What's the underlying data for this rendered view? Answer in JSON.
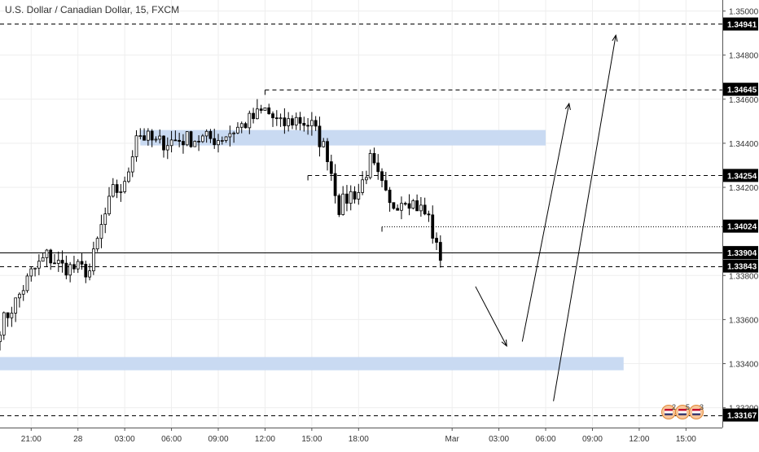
{
  "window": {
    "title": "U.S. Dollar / Canadian Dollar, 15, FXCM"
  },
  "colors": {
    "up": "#000000",
    "down": "#000000",
    "up_fill": "#ffffff",
    "zone": "#c9daf2",
    "grid": "#eeeeee",
    "badge": "#f7c59a"
  },
  "chart_data": {
    "type": "candlestick",
    "title": "U.S. Dollar / Canadian Dollar, 15, FXCM",
    "xlabel": "",
    "ylabel": "",
    "ylim": [
      1.3311,
      1.3505
    ],
    "y_ticks": [
      "1.35000",
      "1.34800",
      "1.34600",
      "1.34400",
      "1.34200",
      "1.33800",
      "1.33600",
      "1.33400",
      "1.33200"
    ],
    "y_tick_values": [
      1.35,
      1.348,
      1.346,
      1.344,
      1.342,
      1.338,
      1.336,
      1.334,
      1.332
    ],
    "x_tick_labels": [
      "21:00",
      "28",
      "03:00",
      "06:00",
      "09:00",
      "12:00",
      "15:00",
      "18:00",
      "Mar",
      "03:00",
      "06:00",
      "09:00",
      "12:00",
      "15:00"
    ],
    "x_tick_times": [
      "2019-02-27 21:00",
      "2019-02-28 00:00",
      "2019-02-28 03:00",
      "2019-02-28 06:00",
      "2019-02-28 09:00",
      "2019-02-28 12:00",
      "2019-02-28 15:00",
      "2019-02-28 18:00",
      "2019-03-01 00:00",
      "2019-03-01 03:00",
      "2019-03-01 06:00",
      "2019-03-01 09:00",
      "2019-03-01 12:00",
      "2019-03-01 15:00"
    ],
    "x_range": [
      "2019-02-27 19:00",
      "2019-03-01 17:20"
    ],
    "close_path": [
      [
        "2019-02-27 19:00",
        1.3357
      ],
      [
        "2019-02-27 20:00",
        1.3368
      ],
      [
        "2019-02-27 21:00",
        1.3381
      ],
      [
        "2019-02-27 22:00",
        1.3389
      ],
      [
        "2019-02-27 23:00",
        1.3384
      ],
      [
        "2019-02-28 00:00",
        1.3383
      ],
      [
        "2019-02-28 00:45",
        1.3382
      ],
      [
        "2019-02-28 01:30",
        1.3402
      ],
      [
        "2019-02-28 02:15",
        1.3418
      ],
      [
        "2019-02-28 03:00",
        1.342
      ],
      [
        "2019-02-28 03:45",
        1.3445
      ],
      [
        "2019-02-28 05:00",
        1.344
      ],
      [
        "2019-02-28 07:00",
        1.3442
      ],
      [
        "2019-02-28 09:00",
        1.3442
      ],
      [
        "2019-02-28 10:30",
        1.3448
      ],
      [
        "2019-02-28 12:00",
        1.3455
      ],
      [
        "2019-02-28 13:00",
        1.3448
      ],
      [
        "2019-02-28 14:00",
        1.3451
      ],
      [
        "2019-02-28 15:00",
        1.3448
      ],
      [
        "2019-02-28 16:00",
        1.3435
      ],
      [
        "2019-02-28 16:45",
        1.3411
      ],
      [
        "2019-02-28 17:30",
        1.3417
      ],
      [
        "2019-02-28 18:00",
        1.3418
      ],
      [
        "2019-02-28 18:45",
        1.3432
      ],
      [
        "2019-02-28 19:30",
        1.342
      ],
      [
        "2019-02-28 20:00",
        1.3411
      ],
      [
        "2019-02-28 21:00",
        1.3416
      ],
      [
        "2019-02-28 22:00",
        1.341
      ],
      [
        "2019-02-28 22:30",
        1.3406
      ],
      [
        "2019-02-28 23:00",
        1.3392
      ],
      [
        "2019-02-28 23:15",
        1.3389
      ]
    ],
    "price_labels": [
      {
        "label": "1.34941",
        "value": 1.34941,
        "style": "dashed"
      },
      {
        "label": "1.34645",
        "value": 1.34645,
        "style": "dashed"
      },
      {
        "label": "1.34254",
        "value": 1.34254,
        "style": "dashed"
      },
      {
        "label": "1.34024",
        "value": 1.34024,
        "style": "dotted"
      },
      {
        "label": "1.33904",
        "value": 1.33904,
        "style": "solid"
      },
      {
        "label": "1.33843",
        "value": 1.33843,
        "style": "dashed"
      },
      {
        "label": "1.33167",
        "value": 1.33167,
        "style": "dashed"
      }
    ],
    "level_starts": {
      "1.34645": "2019-02-28 12:00",
      "1.34254": "2019-02-28 14:45",
      "1.34024": "2019-02-28 19:30"
    },
    "zones": [
      {
        "from": "2019-02-28 04:00",
        "to": "2019-03-01 06:00",
        "low": 1.3439,
        "high": 1.3446
      },
      {
        "from": "2019-02-27 19:00",
        "to": "2019-03-01 11:00",
        "low": 1.3337,
        "high": 1.3343
      }
    ],
    "arrows": [
      {
        "from": [
          "2019-03-01 01:30",
          1.3375
        ],
        "to": [
          "2019-03-01 03:30",
          1.3348
        ]
      },
      {
        "from": [
          "2019-03-01 04:30",
          1.335
        ],
        "to": [
          "2019-03-01 07:30",
          1.3458
        ]
      },
      {
        "from": [
          "2019-03-01 06:30",
          1.3323
        ],
        "to": [
          "2019-03-01 10:30",
          1.3489
        ]
      }
    ],
    "event_badges": [
      "2",
      "5",
      "3"
    ],
    "grid": true
  }
}
